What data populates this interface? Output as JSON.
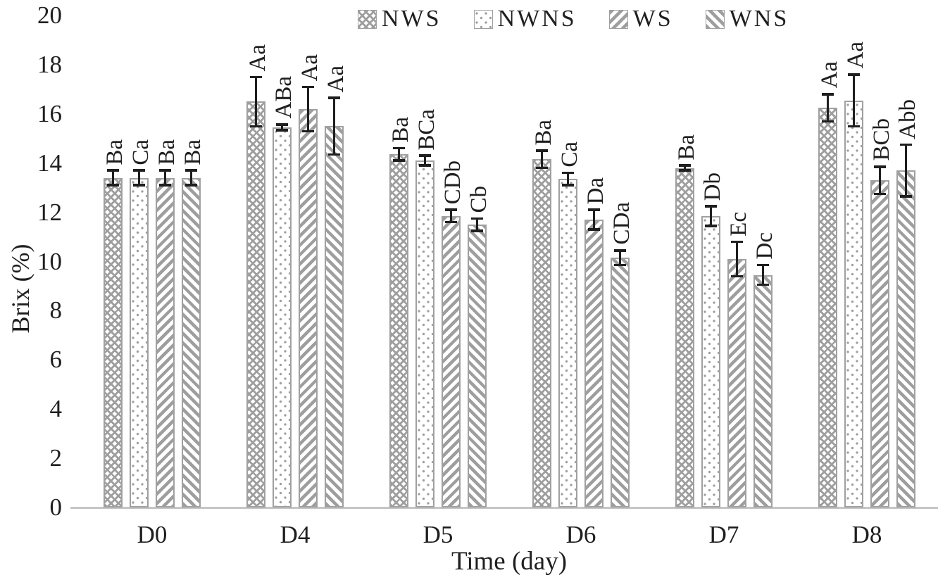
{
  "figure": {
    "background": "#ffffff",
    "ink_color": "#1f1f1f",
    "pattern_gray": "#9e9e9e",
    "bar_border_gray": "#a0a0a0",
    "baseline_gray": "#c6c6c6"
  },
  "chart_data": {
    "type": "bar",
    "title": "",
    "xlabel": "Time (day)",
    "ylabel": "Brix (%)",
    "ylim": [
      0,
      20
    ],
    "ytick_step": 2,
    "yticks": [
      0,
      2,
      4,
      6,
      8,
      10,
      12,
      14,
      16,
      18,
      20
    ],
    "grid": false,
    "legend_position": "top-center",
    "categories": [
      "D0",
      "D4",
      "D5",
      "D6",
      "D7",
      "D8"
    ],
    "series": [
      {
        "name": "NWS",
        "pattern": "crosshatch",
        "values": [
          13.4,
          16.5,
          14.35,
          14.15,
          13.8,
          16.25
        ],
        "errors": [
          0.3,
          1.0,
          0.25,
          0.35,
          0.1,
          0.55
        ],
        "labels": [
          "Ba",
          "Aa",
          "Ba",
          "Ba",
          "Ba",
          "Aa"
        ]
      },
      {
        "name": "NWNS",
        "pattern": "dots",
        "values": [
          13.4,
          15.45,
          14.1,
          13.35,
          11.85,
          16.55
        ],
        "errors": [
          0.3,
          0.12,
          0.2,
          0.25,
          0.4,
          1.05
        ],
        "labels": [
          "Ca",
          "ABa",
          "BCa",
          "Ca",
          "Db",
          "Aa"
        ]
      },
      {
        "name": "WS",
        "pattern": "diag-up",
        "values": [
          13.4,
          16.2,
          11.85,
          11.7,
          10.1,
          13.3
        ],
        "errors": [
          0.3,
          0.9,
          0.25,
          0.4,
          0.7,
          0.55
        ],
        "labels": [
          "Ba",
          "Aa",
          "CDb",
          "Da",
          "Ec",
          "BCb"
        ]
      },
      {
        "name": "WNS",
        "pattern": "diag-down",
        "values": [
          13.4,
          15.5,
          11.5,
          10.15,
          9.45,
          13.7
        ],
        "errors": [
          0.3,
          1.15,
          0.25,
          0.3,
          0.4,
          1.05
        ],
        "labels": [
          "Ba",
          "Aa",
          "Cb",
          "CDa",
          "Dc",
          "Abb"
        ]
      }
    ]
  }
}
